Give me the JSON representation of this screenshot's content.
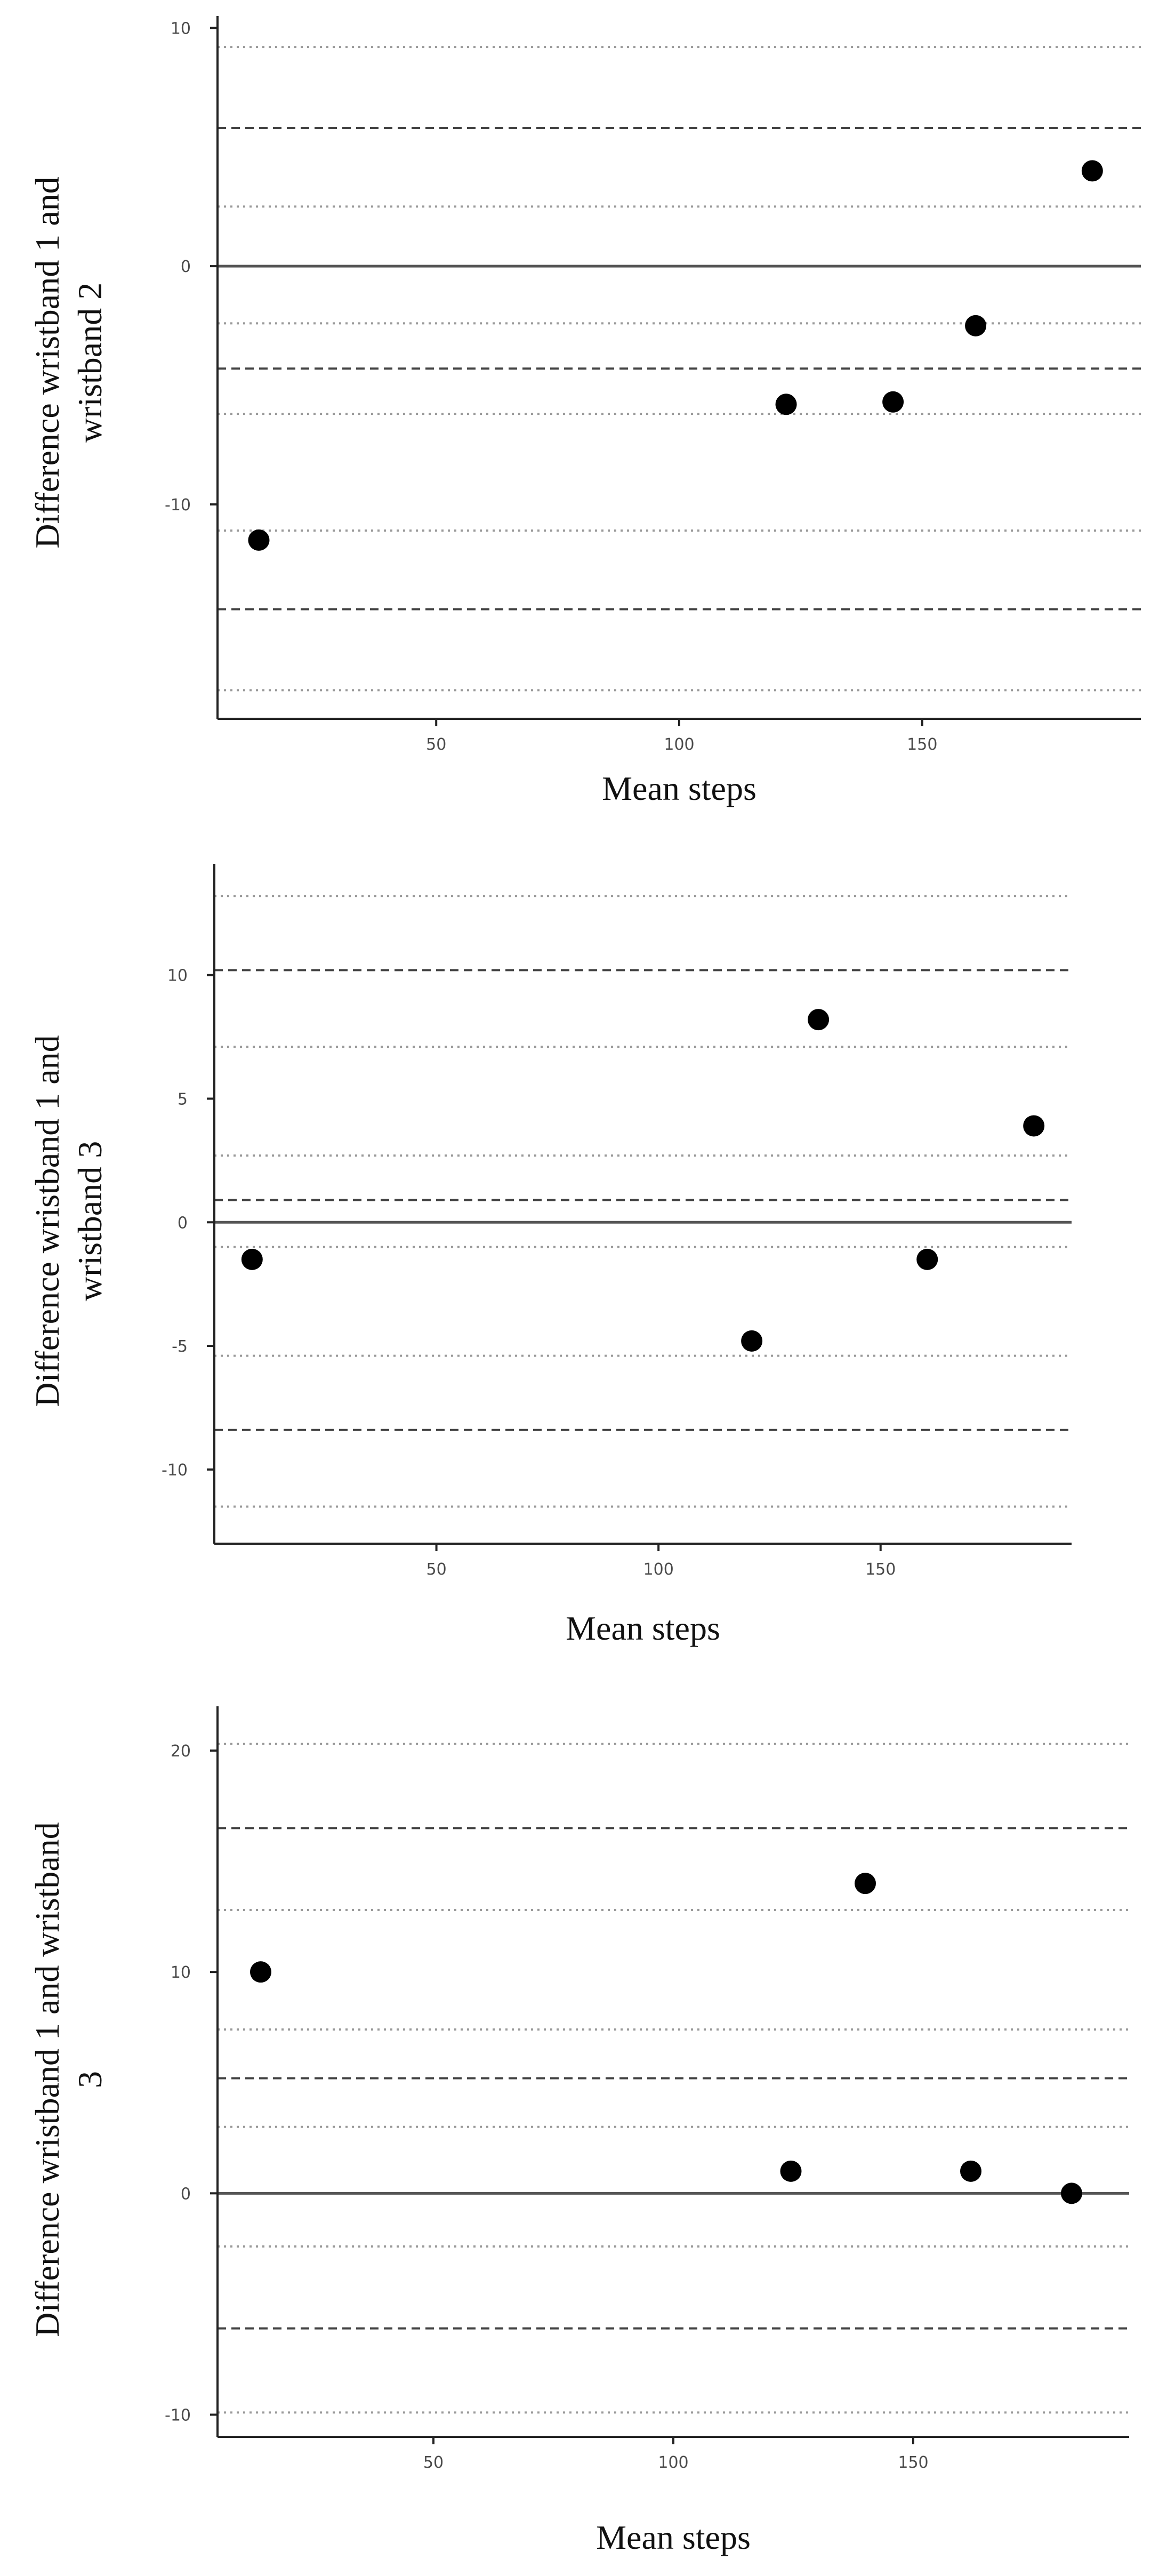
{
  "chart_data": [
    {
      "type": "scatter",
      "xlabel": "Mean steps",
      "ylabel_lines": [
        "Difference wristband 1 and",
        "wristband 2"
      ],
      "xlim": [
        5,
        195
      ],
      "ylim": [
        -19,
        10.5
      ],
      "xticks": [
        50,
        100,
        150
      ],
      "yticks": [
        -10,
        0,
        10
      ],
      "grid": false,
      "points": [
        {
          "x": 13.5,
          "y": -11.5
        },
        {
          "x": 122,
          "y": -5.8
        },
        {
          "x": 144,
          "y": -5.7
        },
        {
          "x": 161,
          "y": -2.5
        },
        {
          "x": 185,
          "y": 4
        }
      ],
      "zero_line": 0,
      "dashed_lines": [
        5.8,
        -4.3,
        -14.4
      ],
      "dotted_lines": [
        9.2,
        2.5,
        -2.4,
        -6.2,
        -11.1,
        -17.8
      ]
    },
    {
      "type": "scatter",
      "xlabel": "Mean steps",
      "ylabel_lines": [
        "Difference wristband 1 and",
        "wristband 3"
      ],
      "xlim": [
        0,
        193
      ],
      "ylim": [
        -13,
        14.5
      ],
      "xticks": [
        50,
        100,
        150
      ],
      "yticks": [
        -10,
        -5,
        0,
        5,
        10
      ],
      "grid": false,
      "points": [
        {
          "x": 8.5,
          "y": -1.5
        },
        {
          "x": 121,
          "y": -4.8
        },
        {
          "x": 136,
          "y": 8.2
        },
        {
          "x": 160.5,
          "y": -1.5
        },
        {
          "x": 184.5,
          "y": 3.9
        }
      ],
      "zero_line": 0,
      "dashed_lines": [
        10.2,
        0.9,
        -8.4
      ],
      "dotted_lines": [
        13.2,
        7.1,
        2.7,
        -1.0,
        -5.4,
        -11.5
      ]
    },
    {
      "type": "scatter",
      "xlabel": "Mean steps",
      "ylabel_lines": [
        "Difference wristband 1 and wristband",
        "3"
      ],
      "xlim": [
        5,
        195
      ],
      "ylim": [
        -11,
        22
      ],
      "xticks": [
        50,
        100,
        150
      ],
      "yticks": [
        -10,
        0,
        10,
        20
      ],
      "grid": false,
      "points": [
        {
          "x": 14,
          "y": 10
        },
        {
          "x": 124.5,
          "y": 1
        },
        {
          "x": 140,
          "y": 14
        },
        {
          "x": 162,
          "y": 1
        },
        {
          "x": 183,
          "y": 0
        }
      ],
      "zero_line": 0,
      "dashed_lines": [
        16.5,
        5.2,
        -6.1
      ],
      "dotted_lines": [
        20.3,
        12.8,
        7.4,
        3.0,
        -2.4,
        -9.9
      ]
    }
  ]
}
